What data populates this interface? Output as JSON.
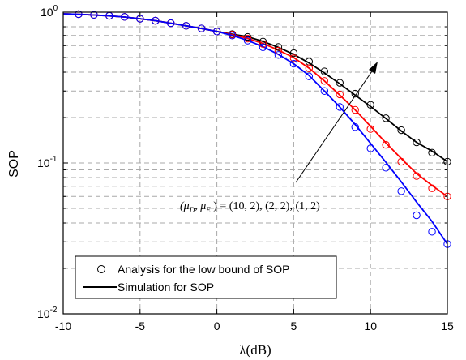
{
  "chart_data": {
    "type": "line",
    "ylabel": "SOP",
    "xlabel": "λ(dB)",
    "xlim": [
      -10,
      15
    ],
    "ylim": [
      0.01,
      1
    ],
    "yscale": "log",
    "grid": true,
    "x_ticks": [
      "-10",
      "-5",
      "0",
      "5",
      "10",
      "15"
    ],
    "y_ticks": [
      {
        "base": "10",
        "exp": "-2"
      },
      {
        "base": "10",
        "exp": "-1"
      },
      {
        "base": "10",
        "exp": "0"
      }
    ],
    "annotation": "(μD, μE) = (10,2),(2,2),(1,2)",
    "legend_position": "bottom-left",
    "legend": [
      {
        "label": "Analysis for the low bound of SOP",
        "marker": "circle"
      },
      {
        "label": "Simulation for SOP",
        "marker": "line"
      }
    ],
    "series": [
      {
        "color": "#000000",
        "line_x": [
          -10,
          -9,
          -8,
          -7,
          -6,
          -5,
          -4,
          -3,
          -2,
          -1,
          0,
          1,
          2,
          3,
          4,
          5,
          6,
          7,
          8,
          9,
          10,
          11,
          12,
          13,
          14,
          15
        ],
        "line_y": [
          0.975,
          0.968,
          0.958,
          0.945,
          0.928,
          0.905,
          0.878,
          0.845,
          0.812,
          0.78,
          0.745,
          0.715,
          0.688,
          0.64,
          0.585,
          0.525,
          0.46,
          0.395,
          0.335,
          0.282,
          0.237,
          0.197,
          0.163,
          0.137,
          0.12,
          0.102
        ],
        "marker_x": [
          -9,
          -8,
          -7,
          -6,
          -5,
          -4,
          -3,
          -2,
          -1,
          0,
          1,
          2,
          3,
          4,
          5,
          6,
          7,
          8,
          9,
          10,
          11,
          12,
          13,
          14,
          15
        ],
        "marker_y": [
          0.97,
          0.96,
          0.946,
          0.93,
          0.905,
          0.878,
          0.845,
          0.812,
          0.78,
          0.745,
          0.715,
          0.685,
          0.638,
          0.588,
          0.535,
          0.47,
          0.405,
          0.34,
          0.288,
          0.243,
          0.198,
          0.165,
          0.137,
          0.117,
          0.102
        ]
      },
      {
        "color": "#ff0000",
        "line_x": [
          -10,
          -9,
          -8,
          -7,
          -6,
          -5,
          -4,
          -3,
          -2,
          -1,
          0,
          1,
          2,
          3,
          4,
          5,
          6,
          7,
          8,
          9,
          10,
          11,
          12,
          13,
          14,
          15
        ],
        "line_y": [
          0.975,
          0.968,
          0.958,
          0.945,
          0.928,
          0.905,
          0.878,
          0.845,
          0.812,
          0.78,
          0.745,
          0.71,
          0.67,
          0.62,
          0.56,
          0.5,
          0.425,
          0.35,
          0.282,
          0.225,
          0.175,
          0.136,
          0.107,
          0.085,
          0.071,
          0.06
        ],
        "marker_x": [
          -9,
          -8,
          -7,
          -6,
          -5,
          -4,
          -3,
          -2,
          -1,
          0,
          1,
          2,
          3,
          4,
          5,
          6,
          7,
          8,
          9,
          10,
          11,
          12,
          13,
          14,
          15
        ],
        "marker_y": [
          0.97,
          0.96,
          0.946,
          0.93,
          0.905,
          0.878,
          0.845,
          0.812,
          0.78,
          0.745,
          0.71,
          0.668,
          0.615,
          0.555,
          0.495,
          0.425,
          0.35,
          0.285,
          0.225,
          0.168,
          0.132,
          0.102,
          0.082,
          0.068,
          0.06
        ]
      },
      {
        "color": "#0000ff",
        "line_x": [
          -10,
          -9,
          -8,
          -7,
          -6,
          -5,
          -4,
          -3,
          -2,
          -1,
          0,
          1,
          2,
          3,
          4,
          5,
          6,
          7,
          8,
          9,
          10,
          11,
          12,
          13,
          14,
          15
        ],
        "line_y": [
          0.975,
          0.968,
          0.958,
          0.945,
          0.928,
          0.905,
          0.878,
          0.845,
          0.812,
          0.78,
          0.745,
          0.7,
          0.65,
          0.59,
          0.525,
          0.455,
          0.38,
          0.3,
          0.235,
          0.18,
          0.135,
          0.101,
          0.075,
          0.055,
          0.041,
          0.029
        ],
        "marker_x": [
          -9,
          -8,
          -7,
          -6,
          -5,
          -4,
          -3,
          -2,
          -1,
          0,
          1,
          2,
          3,
          4,
          5,
          6,
          7,
          8,
          9,
          10,
          11,
          12,
          13,
          14,
          15
        ],
        "marker_y": [
          0.97,
          0.96,
          0.946,
          0.93,
          0.905,
          0.878,
          0.845,
          0.812,
          0.78,
          0.745,
          0.7,
          0.648,
          0.585,
          0.52,
          0.455,
          0.375,
          0.3,
          0.235,
          0.173,
          0.125,
          0.093,
          0.065,
          0.045,
          0.035,
          0.029
        ]
      }
    ]
  }
}
